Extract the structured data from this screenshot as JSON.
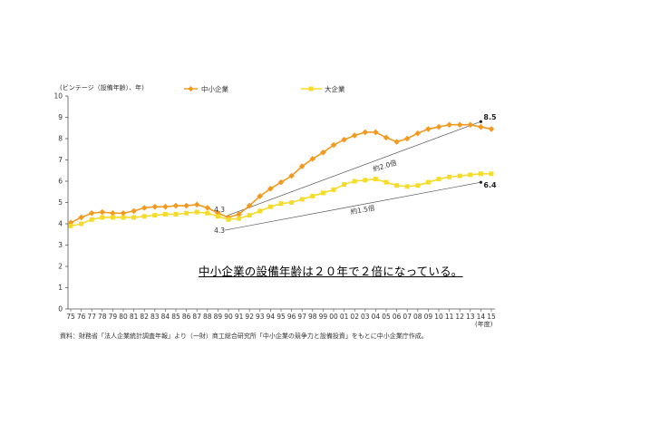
{
  "chart_data": {
    "type": "line",
    "ylabel": "(ビンテージ（設備年齢）、年)",
    "xlabel_unit": "(年度)",
    "ylim": [
      0,
      10
    ],
    "yticks": [
      "0",
      "1",
      "2",
      "3",
      "4",
      "5",
      "6",
      "7",
      "8",
      "9",
      "10"
    ],
    "categories": [
      "75",
      "76",
      "77",
      "78",
      "79",
      "80",
      "81",
      "82",
      "83",
      "84",
      "85",
      "86",
      "87",
      "88",
      "89",
      "90",
      "91",
      "92",
      "93",
      "94",
      "95",
      "96",
      "97",
      "98",
      "99",
      "00",
      "01",
      "02",
      "03",
      "04",
      "05",
      "06",
      "07",
      "08",
      "09",
      "10",
      "11",
      "12",
      "13",
      "14",
      "15"
    ],
    "grid": false,
    "legend_position": "top",
    "series": [
      {
        "name": "中小企業",
        "color": "#f29a1f",
        "marker": "diamond",
        "values": [
          4.05,
          4.3,
          4.5,
          4.55,
          4.5,
          4.5,
          4.6,
          4.75,
          4.8,
          4.8,
          4.85,
          4.85,
          4.9,
          4.75,
          4.5,
          4.3,
          4.45,
          4.85,
          5.3,
          5.65,
          5.95,
          6.25,
          6.7,
          7.05,
          7.35,
          7.7,
          7.95,
          8.15,
          8.3,
          8.3,
          8.05,
          7.85,
          8.0,
          8.25,
          8.45,
          8.55,
          8.65,
          8.65,
          8.65,
          8.55,
          8.45
        ]
      },
      {
        "name": "大企業",
        "color": "#f5dc2a",
        "marker": "square",
        "values": [
          3.9,
          4.0,
          4.2,
          4.3,
          4.3,
          4.3,
          4.3,
          4.35,
          4.4,
          4.45,
          4.45,
          4.5,
          4.55,
          4.5,
          4.35,
          4.2,
          4.25,
          4.4,
          4.6,
          4.8,
          4.95,
          5.0,
          5.15,
          5.3,
          5.45,
          5.6,
          5.85,
          6.0,
          6.05,
          6.1,
          5.95,
          5.8,
          5.75,
          5.8,
          5.95,
          6.1,
          6.2,
          6.25,
          6.3,
          6.35,
          6.35
        ]
      }
    ],
    "annotations": {
      "start_label_sme": "4.3",
      "start_label_large": "4.3",
      "end_label_sme": "8.5",
      "end_label_large": "6.4",
      "ratio_sme": "約2.0倍",
      "ratio_large": "約1.5倍"
    },
    "source": "資料：財務省「法人企業統計調査年報」より（一財）商工総合研究所「中小企業の競争力と設備投資」をもとに中小企業庁作成。"
  },
  "overlay_text": "中小企業の設備年齢は２０年で２倍になっている。"
}
